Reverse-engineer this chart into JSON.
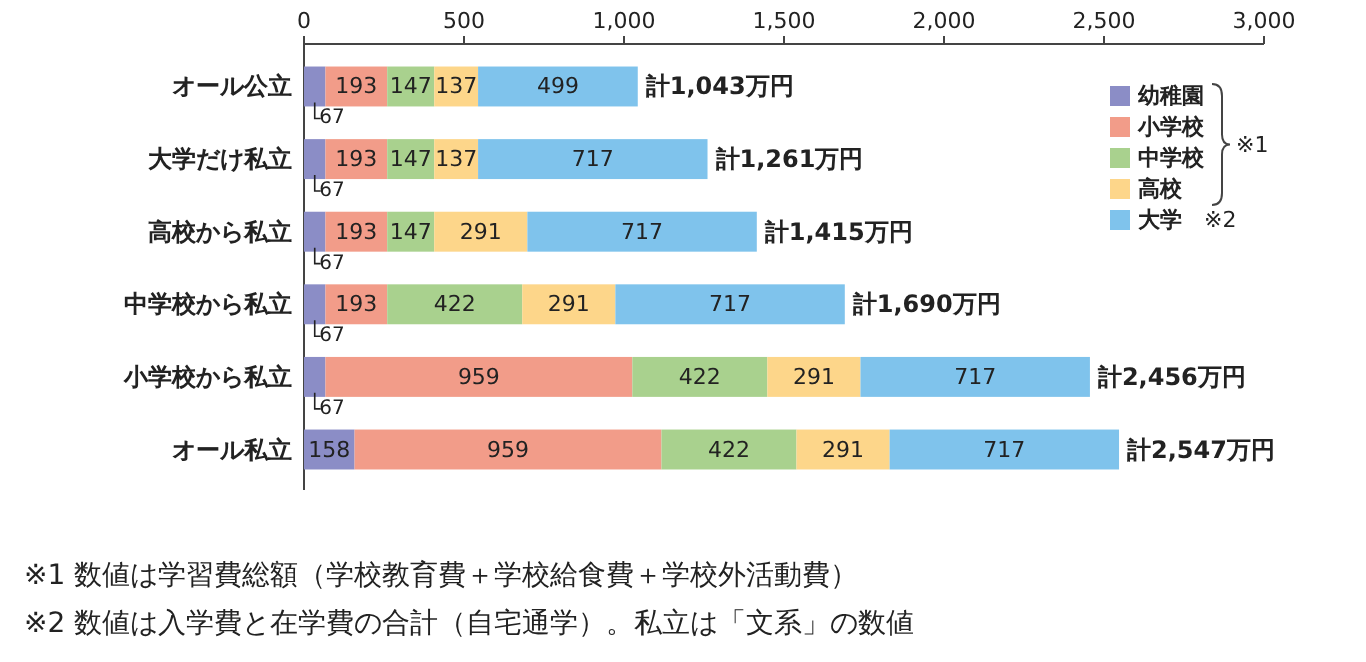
{
  "chart_data": {
    "type": "bar",
    "orientation": "horizontal",
    "stacked": true,
    "categories": [
      "オール公立",
      "大学だけ私立",
      "高校から私立",
      "中学校から私立",
      "小学校から私立",
      "オール私立"
    ],
    "series": [
      {
        "name": "幼稚園",
        "color": "#8b8dc6",
        "values": [
          67,
          67,
          67,
          67,
          67,
          158
        ]
      },
      {
        "name": "小学校",
        "color": "#f29c89",
        "values": [
          193,
          193,
          193,
          193,
          959,
          959
        ]
      },
      {
        "name": "中学校",
        "color": "#a9d18e",
        "values": [
          147,
          147,
          147,
          422,
          422,
          422
        ]
      },
      {
        "name": "高校",
        "color": "#fdd68a",
        "values": [
          137,
          137,
          291,
          291,
          291,
          291
        ]
      },
      {
        "name": "大学",
        "color": "#7fc3ec",
        "values": [
          499,
          717,
          717,
          717,
          717,
          717
        ]
      }
    ],
    "xlim": [
      0,
      3000
    ],
    "xticks": [
      0,
      500,
      {
        "value": 1000,
        "label": "1,000"
      },
      {
        "value": 1500,
        "label": "1,500"
      },
      {
        "value": 2000,
        "label": "2,000"
      },
      {
        "value": 2500,
        "label": "2,500"
      },
      {
        "value": 3000,
        "label": "3,000"
      }
    ],
    "data_labels": true,
    "totals": [
      "計1,043万円",
      "計1,261万円",
      "計1,415万円",
      "計1,690万円",
      "計2,456万円",
      "計2,547万円"
    ],
    "legend": "right",
    "annotations": [
      "※1",
      "※2",
      "※1 数値は学習費総額（学校教育費＋学校給食費＋学校外活動費）",
      "※2 数値は入学費と在学費の合計（自宅通学）。私立は「文系」の数値"
    ]
  }
}
